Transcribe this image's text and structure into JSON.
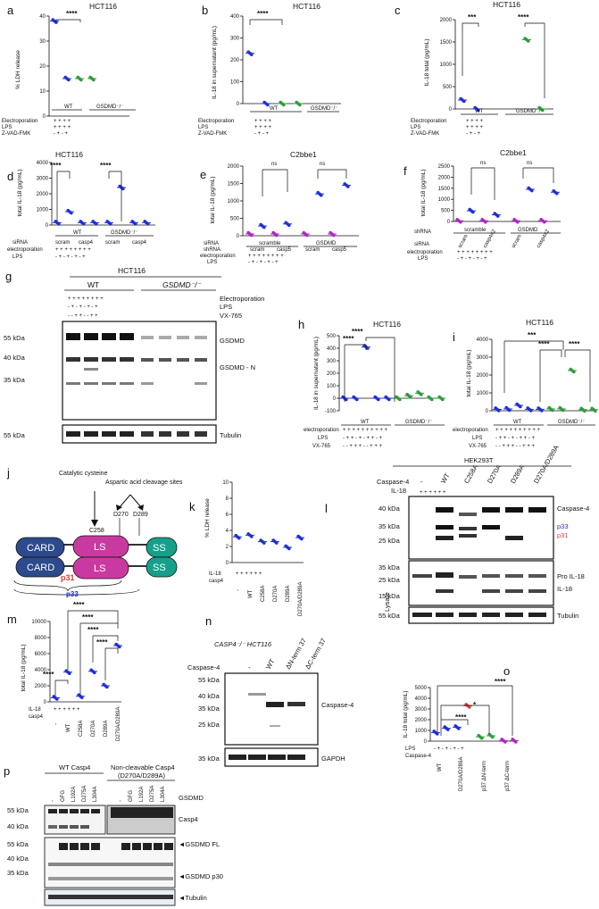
{
  "colors": {
    "blue": "#1f2fd8",
    "green": "#2e9c3a",
    "purple": "#b026c8",
    "red": "#e23a3a",
    "magenta": "#c93aa0",
    "dark_blue": "#2c4a8c",
    "teal": "#16a08b"
  },
  "panel_letters": [
    "a",
    "b",
    "c",
    "d",
    "e",
    "f",
    "g",
    "h",
    "i",
    "j",
    "k",
    "l",
    "m",
    "n",
    "o",
    "p"
  ],
  "common": {
    "hct116": "HCT116",
    "c2bbe1": "C2bbe1",
    "hek293t": "HEK293T",
    "wt": "WT",
    "gsdmd_ko": "GSDMD⁻/⁻",
    "electroporation": "Electroporation",
    "electroporation_lc": "electroporation",
    "lps": "LPS",
    "zvad": "Z-VAD-FMK",
    "vx765": "VX-765",
    "sirna": "siRNA",
    "shrna": "shRNA",
    "scram": "scram",
    "casp4": "casp4",
    "casp5": "casp5",
    "scramble": "scramble",
    "gsdmd": "GSDMD",
    "ns": "ns"
  },
  "chart_data": [
    {
      "panel": "a",
      "type": "scatter",
      "title": "HCT116",
      "ylabel": "% LDH release",
      "ylim": [
        0,
        40
      ],
      "yticks": [
        0,
        10,
        20,
        30,
        40
      ],
      "groups": [
        "WT",
        "WT",
        "GSDMD⁻/⁻",
        "GSDMD⁻/⁻"
      ],
      "series": [
        {
          "values": [
            38,
            15,
            15,
            15
          ]
        }
      ],
      "significance": [
        "****"
      ]
    },
    {
      "panel": "b",
      "type": "scatter",
      "title": "HCT116",
      "ylabel": "IL-18  in supernatant (pg/mL)",
      "ylim": [
        0,
        400
      ],
      "yticks": [
        0,
        100,
        200,
        300,
        400
      ],
      "series": [
        {
          "values": [
            230,
            0,
            0,
            0
          ]
        }
      ],
      "significance": [
        "****"
      ]
    },
    {
      "panel": "c",
      "type": "scatter",
      "title": "HCT116",
      "ylabel": "IL-18 total (pg/mL)",
      "ylim": [
        0,
        2000
      ],
      "yticks": [
        0,
        500,
        1000,
        1500,
        2000
      ],
      "series": [
        {
          "values": [
            200,
            0,
            1550,
            0
          ]
        }
      ],
      "significance": [
        "***",
        "****"
      ]
    },
    {
      "panel": "d",
      "type": "scatter",
      "title": "HCT116",
      "ylabel": "total IL-18 (pg/mL)",
      "ylim": [
        0,
        4000
      ],
      "yticks": [
        0,
        1000,
        2000,
        3000,
        4000
      ],
      "series": [
        {
          "values": [
            150,
            850,
            150,
            150,
            150,
            2400,
            150,
            150
          ]
        }
      ],
      "significance": [
        "****",
        "****"
      ]
    },
    {
      "panel": "e",
      "type": "scatter",
      "title": "C2bbe1",
      "ylabel": "total IL-18 (pg/mL)",
      "ylim": [
        0,
        2000
      ],
      "yticks": [
        0,
        500,
        1000,
        1500,
        2000
      ],
      "series": [
        {
          "values": [
            50,
            280,
            50,
            340,
            50,
            1200,
            50,
            1450
          ]
        }
      ],
      "significance": [
        "ns",
        "ns"
      ]
    },
    {
      "panel": "f",
      "type": "scatter",
      "title": "C2bbe1",
      "ylabel": "total IL-18 (pg/mL)",
      "ylim": [
        0,
        2500
      ],
      "yticks": [
        0,
        500,
        1000,
        1500,
        2000,
        2500
      ],
      "series": [
        {
          "values": [
            30,
            480,
            30,
            300,
            30,
            1450,
            30,
            1320
          ]
        }
      ],
      "significance": [
        "ns",
        "ns"
      ],
      "x_tick_labels": [
        "scram",
        "casp4#2",
        "scram",
        "casp4#2"
      ]
    },
    {
      "panel": "h",
      "type": "scatter",
      "title": "HCT116",
      "ylabel": "IL-18 in supernatant (pg/mL)",
      "ylim": [
        -100,
        500
      ],
      "yticks": [
        -100,
        0,
        100,
        200,
        300,
        400,
        500
      ],
      "series": [
        {
          "values": [
            0,
            0,
            410,
            0,
            0,
            0,
            20,
            40,
            0,
            0
          ]
        }
      ],
      "significance": [
        "****",
        "****"
      ]
    },
    {
      "panel": "i",
      "type": "scatter",
      "title": "HCT116",
      "ylabel": "total IL-18 (pg/mL)",
      "ylim": [
        0,
        4000
      ],
      "yticks": [
        0,
        1000,
        2000,
        3000,
        4000
      ],
      "series": [
        {
          "values": [
            80,
            100,
            300,
            80,
            80,
            100,
            100,
            2250,
            60,
            60
          ]
        }
      ],
      "significance": [
        "***",
        "****",
        "****"
      ]
    },
    {
      "panel": "k",
      "type": "scatter",
      "ylabel": "% LDH release",
      "ylim": [
        0,
        10
      ],
      "yticks": [
        0,
        2,
        4,
        6,
        8,
        10
      ],
      "categories": [
        "-",
        "WT",
        "C258A",
        "D270A",
        "D289A",
        "D270A/D289A"
      ],
      "series": [
        {
          "values": [
            3.2,
            3.4,
            2.6,
            2.6,
            1.9,
            3.1
          ]
        }
      ]
    },
    {
      "panel": "m",
      "type": "scatter",
      "ylabel": "total IL-18 (pg/mL)",
      "ylim": [
        0,
        10000
      ],
      "yticks": [
        0,
        2000,
        4000,
        6000,
        8000,
        10000
      ],
      "categories": [
        "-",
        "WT",
        "C258A",
        "D270A",
        "D289A",
        "D270A/D289A"
      ],
      "series": [
        {
          "values": [
            500,
            3700,
            700,
            3800,
            2000,
            7000
          ]
        }
      ],
      "significance": [
        "****",
        "****",
        "****",
        "****",
        "****"
      ]
    },
    {
      "panel": "o",
      "type": "scatter",
      "ylabel": "IL-18 total (pg/mL)",
      "ylim": [
        0,
        5000
      ],
      "yticks": [
        0,
        1000,
        2000,
        3000,
        4000,
        5000
      ],
      "categories": [
        "WT",
        "D270A/D289A",
        "p37 ΔN-term",
        "p37 ΔC-term"
      ],
      "series": [
        {
          "values": [
            800,
            1200,
            1300,
            3300,
            400,
            500,
            50,
            50
          ]
        }
      ],
      "significance": [
        "****",
        "*",
        "****"
      ]
    }
  ],
  "panel_g": {
    "title": "HCT116",
    "groups": [
      "WT",
      "GSDMD⁻/⁻"
    ],
    "conditions": [
      "Electroporation",
      "LPS",
      "VX-765"
    ],
    "mw": [
      "55 kDa",
      "40 kDa",
      "35 kDa",
      "55 kDa"
    ],
    "bands": [
      "GSDMD",
      "GSDMD - N",
      "Tubulin"
    ]
  },
  "panel_h_labels": {
    "electroporation": "electroporation",
    "lps": "LPS",
    "vx": "VX-765",
    "wt": "WT",
    "gsdmd": "GSDMD⁻/⁻"
  },
  "panel_j": {
    "catalytic": "Catalytic cysteine",
    "aspartic": "Aspartic acid cleavage sites",
    "c258": "C258",
    "d270": "D270",
    "d289": "D289",
    "card": "CARD",
    "ls": "LS",
    "ss": "SS",
    "p31": "p31",
    "p33": "p33"
  },
  "panel_l": {
    "title": "HEK293T",
    "caspase": "Caspase-4",
    "il18": "IL-18",
    "lanes": [
      "-",
      "WT",
      "C258A",
      "D270A",
      "D289A",
      "D270A/D289A"
    ],
    "mw": [
      "40 kDa",
      "35 kDa",
      "25 kDa",
      "35 kDa",
      "25 kDa",
      "15 kDa",
      "55 kDa"
    ],
    "bands": [
      "Caspase-4",
      "p33",
      "p31",
      "Pro IL-18",
      "IL-18",
      "Tubulin"
    ],
    "lysate": "Lysate"
  },
  "panel_n": {
    "title": "CASP4⁻/⁻ HCT116",
    "caspase": "Caspase-4",
    "lanes": [
      "-",
      "WT",
      "ΔN-term 37",
      "ΔC-term 37"
    ],
    "mw": [
      "55 kDa",
      "40 kDa",
      "35 kDa",
      "25 kDa",
      "35 kDa"
    ],
    "bands": [
      "Caspase-4",
      "GAPDH"
    ]
  },
  "panel_p": {
    "group1": "WT Casp4",
    "group2": "Non-cleavable Casp4",
    "group2_sub": "(D270A/D289A)",
    "lanes": [
      "-",
      "GFG",
      "L192A",
      "D275A",
      "L304A"
    ],
    "gsdmd": "GSDMD",
    "mw": [
      "55 kDa",
      "40 kDa",
      "55 kDa",
      "40 kDa",
      "35 kDa"
    ],
    "bands": [
      "Casp4",
      "◄GSDMD FL",
      "◄GSDMD p30",
      "◄Tubulin"
    ]
  }
}
